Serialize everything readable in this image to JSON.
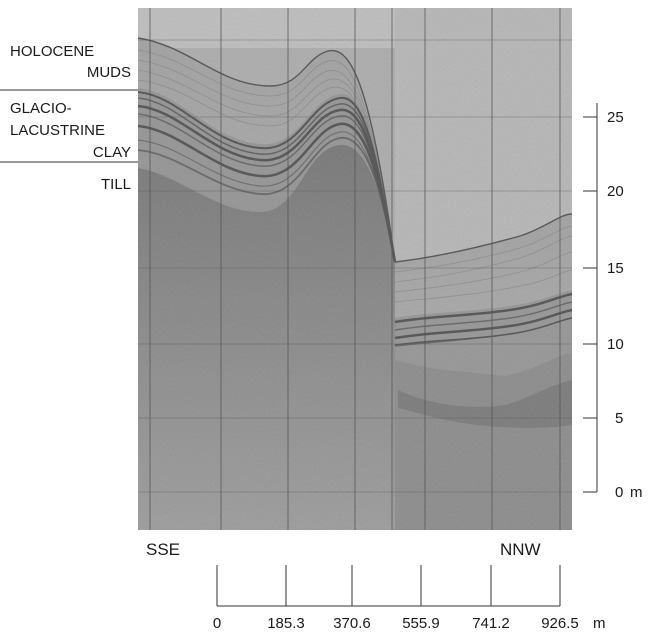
{
  "units_legend": [
    {
      "lines": [
        "HOLOCENE",
        "MUDS"
      ]
    },
    {
      "lines": [
        "GLACIO-",
        "LACUSTRINE",
        "CLAY"
      ]
    },
    {
      "lines": [
        "TILL"
      ]
    }
  ],
  "depth_scale": {
    "ticks": [
      "25",
      "20",
      "15",
      "10",
      "5",
      "0"
    ],
    "unit": "m"
  },
  "directions": {
    "left": "SSE",
    "right": "NNW"
  },
  "distance_scale": {
    "ticks": [
      "0",
      "185.3",
      "370.6",
      "555.9",
      "741.2",
      "926.5"
    ],
    "unit": "m"
  },
  "colors": {
    "record_background": "#a8a8a8",
    "till_dark": "#6e6e6e",
    "clay_bands": "#2a2a2a",
    "grid": "#1f1f1f",
    "interpreted_line": "#2b2b2b"
  }
}
